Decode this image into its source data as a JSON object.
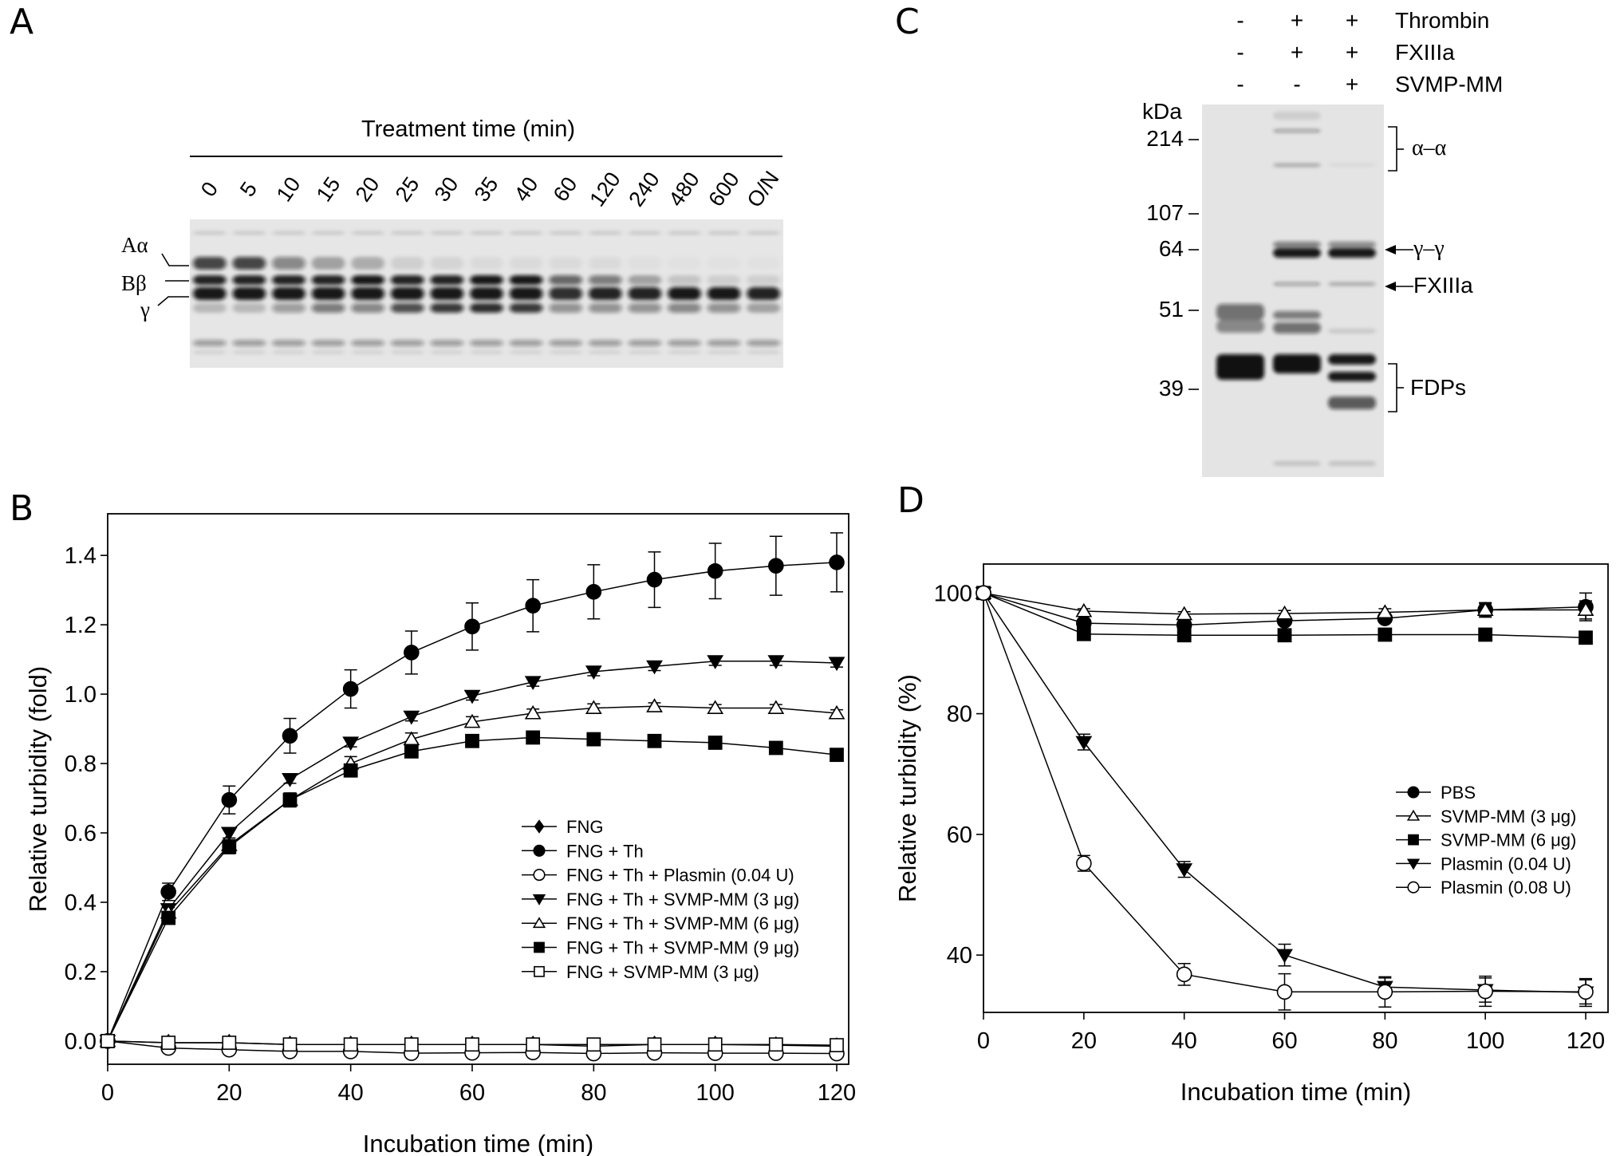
{
  "panels": {
    "a": "A",
    "b": "B",
    "c": "C",
    "d": "D"
  },
  "gel_a": {
    "header": "Treatment time (min)",
    "lanes": [
      "0",
      "5",
      "10",
      "15",
      "20",
      "25",
      "30",
      "35",
      "40",
      "60",
      "120",
      "240",
      "480",
      "600",
      "O/N"
    ],
    "band_labels": [
      "Aα",
      "Bβ",
      "γ"
    ]
  },
  "gel_c": {
    "rows": [
      {
        "label": "Thrombin",
        "signs": [
          "-",
          "+",
          "+"
        ]
      },
      {
        "label": "FXIIIa",
        "signs": [
          "-",
          "+",
          "+"
        ]
      },
      {
        "label": "SVMP-MM",
        "signs": [
          "-",
          "-",
          "+"
        ]
      }
    ],
    "unit": "kDa",
    "markers": [
      "214",
      "107",
      "64",
      "51",
      "39"
    ],
    "annotations": {
      "alpha": "α–α",
      "gamma": "γ–γ",
      "fxiiia": "FXIIIa",
      "fdps": "FDPs"
    }
  },
  "chart_data": [
    {
      "id": "B",
      "type": "line",
      "xlabel": "Incubation time (min)",
      "ylabel": "Relative turbidity (fold)",
      "xlim": [
        0,
        120
      ],
      "ylim": [
        -0.067,
        1.52
      ],
      "xticks": [
        0,
        20,
        40,
        60,
        80,
        100,
        120
      ],
      "yticks": [
        0.0,
        0.2,
        0.4,
        0.6,
        0.8,
        1.0,
        1.2,
        1.4
      ],
      "ytick_labels": [
        "0.0",
        "0.2",
        "0.4",
        "0.6",
        "0.8",
        "1.0",
        "1.2",
        "1.4"
      ],
      "grid": false,
      "legend_position": "center-right",
      "x": [
        0,
        10,
        20,
        30,
        40,
        50,
        60,
        70,
        80,
        90,
        100,
        110,
        120
      ],
      "series": [
        {
          "name": "FNG",
          "marker": "diamond-filled",
          "values": [
            0,
            -0.005,
            -0.005,
            -0.01,
            -0.01,
            -0.01,
            -0.01,
            -0.01,
            -0.015,
            -0.01,
            -0.01,
            -0.012,
            -0.015
          ],
          "errors": [
            0,
            0.005,
            0.005,
            0.005,
            0.005,
            0.005,
            0.005,
            0.005,
            0.005,
            0.005,
            0.005,
            0.005,
            0.005
          ]
        },
        {
          "name": "FNG + Th",
          "marker": "circle-filled",
          "values": [
            0,
            0.43,
            0.695,
            0.88,
            1.015,
            1.12,
            1.195,
            1.255,
            1.295,
            1.33,
            1.355,
            1.37,
            1.38
          ],
          "errors": [
            0,
            0.025,
            0.04,
            0.05,
            0.055,
            0.062,
            0.068,
            0.075,
            0.078,
            0.08,
            0.08,
            0.085,
            0.085
          ]
        },
        {
          "name": "FNG + Th + Plasmin (0.04 U)",
          "marker": "circle-open",
          "values": [
            0,
            -0.02,
            -0.025,
            -0.03,
            -0.03,
            -0.035,
            -0.034,
            -0.033,
            -0.036,
            -0.034,
            -0.035,
            -0.035,
            -0.036
          ],
          "errors": [
            0,
            0.005,
            0.005,
            0.005,
            0.005,
            0.005,
            0.005,
            0.005,
            0.005,
            0.005,
            0.005,
            0.005,
            0.005
          ]
        },
        {
          "name": "FNG + Th + SVMP-MM (3 μg)",
          "marker": "triangle-down-filled",
          "values": [
            0,
            0.38,
            0.6,
            0.755,
            0.86,
            0.935,
            0.995,
            1.035,
            1.065,
            1.08,
            1.095,
            1.095,
            1.09
          ],
          "errors": [
            0,
            0.015,
            0.015,
            0.012,
            0.012,
            0.012,
            0.012,
            0.012,
            0.012,
            0.012,
            0.012,
            0.012,
            0.012
          ]
        },
        {
          "name": "FNG + Th + SVMP-MM (6 μg)",
          "marker": "triangle-up-open",
          "values": [
            0,
            0.37,
            0.565,
            0.695,
            0.8,
            0.87,
            0.92,
            0.945,
            0.96,
            0.965,
            0.96,
            0.96,
            0.945
          ],
          "errors": [
            0,
            0.015,
            0.02,
            0.02,
            0.02,
            0.018,
            0.015,
            0.012,
            0.012,
            0.01,
            0.01,
            0.01,
            0.01
          ]
        },
        {
          "name": "FNG + Th + SVMP-MM (9 μg)",
          "marker": "square-filled",
          "values": [
            0,
            0.355,
            0.56,
            0.695,
            0.78,
            0.835,
            0.865,
            0.875,
            0.87,
            0.865,
            0.86,
            0.845,
            0.825
          ],
          "errors": [
            0,
            0.015,
            0.02,
            0.02,
            0.018,
            0.015,
            0.015,
            0.015,
            0.012,
            0.012,
            0.015,
            0.012,
            0.015
          ]
        },
        {
          "name": "FNG + SVMP-MM (3 μg)",
          "marker": "square-open",
          "values": [
            0,
            -0.005,
            -0.005,
            -0.01,
            -0.01,
            -0.01,
            -0.01,
            -0.01,
            -0.01,
            -0.01,
            -0.01,
            -0.01,
            -0.012
          ],
          "errors": [
            0,
            0.005,
            0.005,
            0.005,
            0.005,
            0.005,
            0.005,
            0.005,
            0.005,
            0.005,
            0.005,
            0.005,
            0.005
          ]
        }
      ]
    },
    {
      "id": "D",
      "type": "line",
      "xlabel": "Incubation time (min)",
      "ylabel": "Relative turbidity (%)",
      "xlim": [
        0,
        120
      ],
      "ylim": [
        30.5,
        104.8
      ],
      "xticks": [
        0,
        20,
        40,
        60,
        80,
        100,
        120
      ],
      "yticks": [
        40,
        60,
        80,
        100
      ],
      "ytick_labels": [
        "40",
        "60",
        "80",
        "100"
      ],
      "grid": false,
      "legend_position": "center-right",
      "x": [
        0,
        20,
        40,
        60,
        80,
        100,
        120
      ],
      "series": [
        {
          "name": "PBS",
          "marker": "circle-filled",
          "values": [
            100,
            95,
            94.7,
            95.4,
            95.8,
            97.2,
            97.7
          ],
          "errors": [
            0,
            0.7,
            0.7,
            0.5,
            0.5,
            1.0,
            2.3
          ]
        },
        {
          "name": "SVMP-MM (3 μg)",
          "marker": "triangle-up-open",
          "values": [
            100,
            97,
            96.5,
            96.6,
            96.8,
            97.2,
            97.2
          ],
          "errors": [
            0,
            0.4,
            0.4,
            0.5,
            0.6,
            1.2,
            1.5
          ]
        },
        {
          "name": "SVMP-MM (6 μg)",
          "marker": "square-filled",
          "values": [
            100,
            93.2,
            93,
            93,
            93.1,
            93.1,
            92.6
          ],
          "errors": [
            0,
            0.7,
            0.6,
            0.6,
            0.5,
            0.5,
            0.5
          ]
        },
        {
          "name": "Plasmin (0.04 U)",
          "marker": "triangle-down-filled",
          "values": [
            100,
            75.3,
            54.2,
            40,
            34.7,
            34.2,
            33.8
          ],
          "errors": [
            0,
            1.3,
            1.3,
            1.8,
            1.5,
            2.0,
            2.3
          ]
        },
        {
          "name": "Plasmin (0.08 U)",
          "marker": "circle-open",
          "values": [
            100,
            55.2,
            36.8,
            33.9,
            33.9,
            34.0,
            33.9
          ],
          "errors": [
            0,
            1.3,
            1.8,
            3.0,
            2.5,
            2.5,
            2.0
          ]
        }
      ]
    }
  ]
}
